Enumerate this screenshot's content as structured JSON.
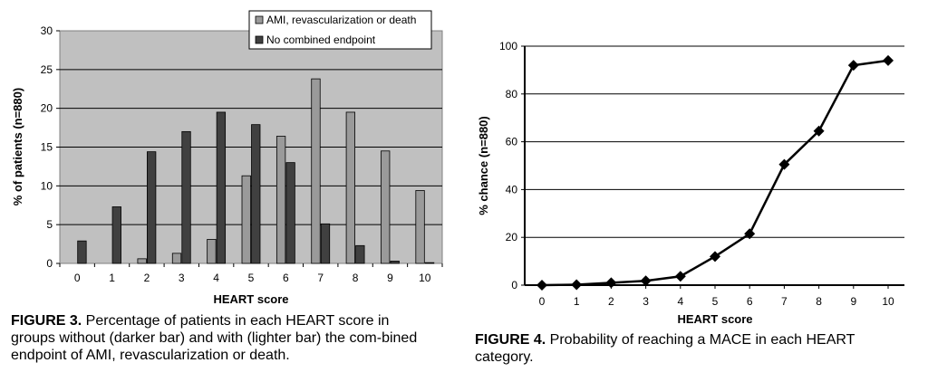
{
  "chart_data": [
    {
      "type": "bar",
      "categories": [
        "0",
        "1",
        "2",
        "3",
        "4",
        "5",
        "6",
        "7",
        "8",
        "9",
        "10"
      ],
      "series": [
        {
          "name": "AMI, revascularization or death",
          "color": "#9a9a9a",
          "values": [
            0,
            0,
            0.6,
            1.3,
            3.1,
            11.3,
            16.4,
            23.8,
            19.5,
            14.5,
            9.4
          ]
        },
        {
          "name": "No combined endpoint",
          "color": "#404040",
          "values": [
            2.9,
            7.3,
            14.4,
            17.0,
            19.5,
            17.9,
            13.0,
            5.1,
            2.3,
            0.3,
            0.1
          ]
        }
      ],
      "xlabel": "HEART score",
      "ylabel": "% of patients (n=880)",
      "ylim": [
        0,
        30
      ],
      "yticks": [
        "0",
        "5",
        "10",
        "15",
        "20",
        "25",
        "30"
      ],
      "grid": true,
      "legend_placement": "top-right",
      "plot_background": "#c0c0c0"
    },
    {
      "type": "line",
      "x": [
        "0",
        "1",
        "2",
        "3",
        "4",
        "5",
        "6",
        "7",
        "8",
        "9",
        "10"
      ],
      "series": [
        {
          "values": [
            0,
            0.2,
            1.0,
            1.8,
            3.7,
            12.0,
            21.5,
            50.5,
            64.5,
            92.0,
            94.0
          ]
        }
      ],
      "xlabel": "HEART score",
      "ylabel": "% chance (n=880)",
      "ylim": [
        0,
        100
      ],
      "yticks": [
        "0",
        "20",
        "40",
        "60",
        "80",
        "100"
      ],
      "grid": true,
      "marker": "diamond"
    }
  ],
  "captions": {
    "fig3": {
      "label": "FIGURE 3.",
      "text": " Percentage of patients in each HEART score in groups without (darker bar) and with (lighter bar) the com-bined endpoint of AMI, revascularization or death."
    },
    "fig4": {
      "label": "FIGURE 4.",
      "text": " Probability of reaching a MACE in each HEART category."
    }
  }
}
